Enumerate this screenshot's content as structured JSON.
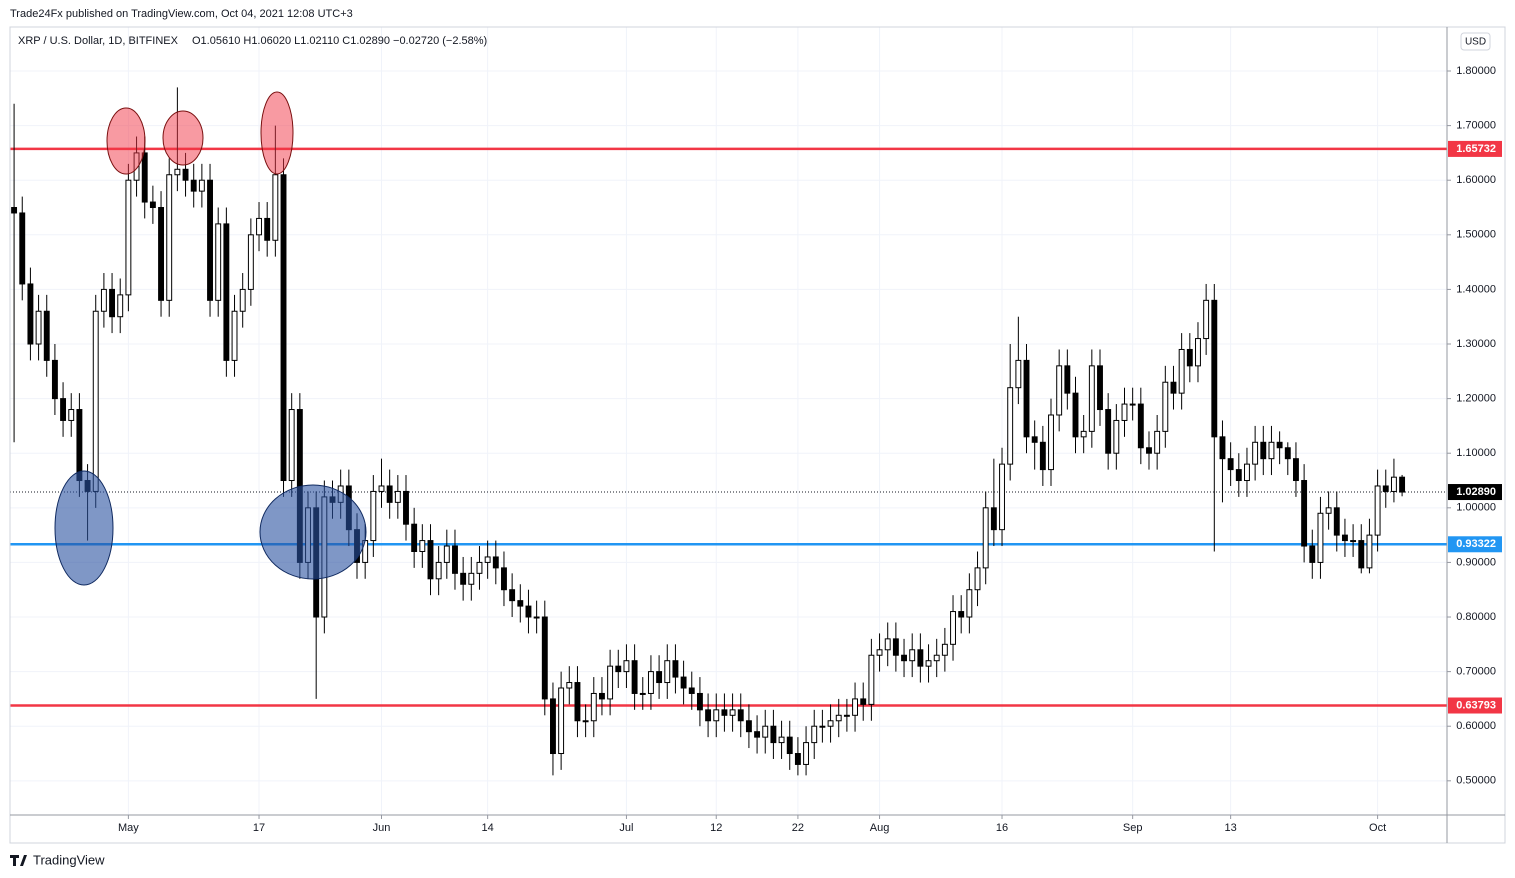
{
  "chart_data": {
    "type": "candlestick",
    "publisher": "Trade24Fx published on TradingView.com, Oct 04, 2021 12:08 UTC+3",
    "title": "XRP / U.S. Dollar, 1D, BITFINEX",
    "ohlc_header": "O1.05610 H1.06020 L1.02110 C1.02890 −0.02720 (−2.58%)",
    "currency": "USD",
    "brand": "TradingView",
    "up_color": "#ffffff",
    "down_color": "#000000",
    "outline_color": "#000000",
    "grid": true,
    "ylim": [
      0.4374,
      1.8806
    ],
    "yticks": [
      {
        "value": 0.5,
        "label": "0.50000"
      },
      {
        "value": 0.6,
        "label": "0.60000"
      },
      {
        "value": 0.7,
        "label": "0.70000"
      },
      {
        "value": 0.8,
        "label": "0.80000"
      },
      {
        "value": 0.9,
        "label": "0.90000"
      },
      {
        "value": 1.0,
        "label": "1.00000"
      },
      {
        "value": 1.1,
        "label": "1.10000"
      },
      {
        "value": 1.2,
        "label": "1.20000"
      },
      {
        "value": 1.3,
        "label": "1.30000"
      },
      {
        "value": 1.4,
        "label": "1.40000"
      },
      {
        "value": 1.5,
        "label": "1.50000"
      },
      {
        "value": 1.6,
        "label": "1.60000"
      },
      {
        "value": 1.7,
        "label": "1.70000"
      },
      {
        "value": 1.8,
        "label": "1.80000"
      }
    ],
    "xlim": [
      -0.5,
      175.5
    ],
    "xticks": [
      {
        "value": 14,
        "label": "May"
      },
      {
        "value": 30,
        "label": "17"
      },
      {
        "value": 45,
        "label": "Jun"
      },
      {
        "value": 58,
        "label": "14"
      },
      {
        "value": 75,
        "label": "Jul"
      },
      {
        "value": 86,
        "label": "12"
      },
      {
        "value": 96,
        "label": "22"
      },
      {
        "value": 106,
        "label": "Aug"
      },
      {
        "value": 121,
        "label": "16"
      },
      {
        "value": 137,
        "label": "Sep"
      },
      {
        "value": 149,
        "label": "13"
      },
      {
        "value": 167,
        "label": "Oct"
      }
    ],
    "levels": [
      {
        "value": 1.65732,
        "label": "1.65732",
        "color": "#f23645"
      },
      {
        "value": 0.93322,
        "label": "0.93322",
        "color": "#2196f3"
      },
      {
        "value": 0.63793,
        "label": "0.63793",
        "color": "#f23645"
      }
    ],
    "last_price_label": "1.02890",
    "open": [
      1.55,
      1.54,
      1.41,
      1.3,
      1.36,
      1.27,
      1.2,
      1.16,
      1.18,
      1.05,
      1.03,
      1.36,
      1.4,
      1.35,
      1.39,
      1.6,
      1.65,
      1.56,
      1.55,
      1.38,
      1.61,
      1.62,
      1.6,
      1.58,
      1.6,
      1.38,
      1.52,
      1.27,
      1.36,
      1.4,
      1.5,
      1.53,
      1.49,
      1.61,
      1.05,
      1.18,
      0.9,
      1.0,
      0.8,
      1.02,
      1.01,
      1.04,
      0.96,
      0.9,
      0.94,
      1.03,
      1.04,
      1.01,
      1.03,
      0.97,
      0.92,
      0.94,
      0.87,
      0.9,
      0.93,
      0.88,
      0.86,
      0.88,
      0.9,
      0.91,
      0.89,
      0.85,
      0.83,
      0.82,
      0.8,
      0.8,
      0.65,
      0.55,
      0.67,
      0.68,
      0.61,
      0.61,
      0.66,
      0.65,
      0.71,
      0.7,
      0.72,
      0.66,
      0.66,
      0.7,
      0.68,
      0.72,
      0.69,
      0.67,
      0.66,
      0.63,
      0.61,
      0.63,
      0.62,
      0.63,
      0.61,
      0.59,
      0.58,
      0.6,
      0.57,
      0.58,
      0.55,
      0.53,
      0.57,
      0.6,
      0.6,
      0.61,
      0.62,
      0.62,
      0.65,
      0.64,
      0.73,
      0.74,
      0.76,
      0.73,
      0.72,
      0.74,
      0.71,
      0.72,
      0.73,
      0.75,
      0.81,
      0.8,
      0.85,
      0.89,
      1.0,
      0.96,
      1.08,
      1.22,
      1.27,
      1.13,
      1.12,
      1.07,
      1.17,
      1.26,
      1.21,
      1.13,
      1.14,
      1.26,
      1.18,
      1.1,
      1.16,
      1.19,
      1.19,
      1.11,
      1.1,
      1.14,
      1.23,
      1.21,
      1.29,
      1.26,
      1.31,
      1.38,
      1.13,
      1.09,
      1.07,
      1.05,
      1.08,
      1.12,
      1.09,
      1.12,
      1.11,
      1.09,
      1.05,
      0.93,
      0.9,
      0.99,
      1.0,
      0.95,
      0.94,
      0.94,
      0.89,
      0.95,
      1.04,
      1.03,
      1.0561
    ],
    "high": [
      1.74,
      1.57,
      1.44,
      1.39,
      1.39,
      1.3,
      1.23,
      1.21,
      1.21,
      1.08,
      1.39,
      1.43,
      1.43,
      1.42,
      1.63,
      1.68,
      1.68,
      1.59,
      1.58,
      1.64,
      1.77,
      1.65,
      1.63,
      1.63,
      1.63,
      1.55,
      1.55,
      1.39,
      1.43,
      1.53,
      1.56,
      1.56,
      1.7,
      1.64,
      1.21,
      1.21,
      1.03,
      1.03,
      1.05,
      1.05,
      1.07,
      1.07,
      0.99,
      0.97,
      1.06,
      1.09,
      1.07,
      1.06,
      1.06,
      1.0,
      0.97,
      0.97,
      0.93,
      0.96,
      0.96,
      0.91,
      0.91,
      0.93,
      0.94,
      0.94,
      0.92,
      0.88,
      0.86,
      0.85,
      0.83,
      0.83,
      0.68,
      0.7,
      0.71,
      0.71,
      0.64,
      0.69,
      0.69,
      0.74,
      0.74,
      0.75,
      0.75,
      0.69,
      0.73,
      0.73,
      0.75,
      0.75,
      0.72,
      0.7,
      0.69,
      0.66,
      0.66,
      0.66,
      0.66,
      0.66,
      0.64,
      0.62,
      0.63,
      0.63,
      0.61,
      0.61,
      0.58,
      0.6,
      0.63,
      0.63,
      0.64,
      0.65,
      0.65,
      0.68,
      0.68,
      0.76,
      0.77,
      0.79,
      0.79,
      0.76,
      0.77,
      0.77,
      0.75,
      0.76,
      0.78,
      0.84,
      0.84,
      0.88,
      0.92,
      1.03,
      1.09,
      1.11,
      1.3,
      1.35,
      1.3,
      1.16,
      1.15,
      1.2,
      1.29,
      1.29,
      1.24,
      1.17,
      1.29,
      1.29,
      1.21,
      1.19,
      1.22,
      1.22,
      1.22,
      1.14,
      1.17,
      1.26,
      1.26,
      1.32,
      1.32,
      1.34,
      1.41,
      1.41,
      1.16,
      1.12,
      1.1,
      1.11,
      1.15,
      1.15,
      1.15,
      1.14,
      1.12,
      1.12,
      1.08,
      0.96,
      1.02,
      1.03,
      1.03,
      0.98,
      0.97,
      0.97,
      0.98,
      1.07,
      1.07,
      1.09,
      1.0602
    ],
    "low": [
      1.12,
      1.38,
      1.27,
      1.27,
      1.24,
      1.17,
      1.13,
      1.13,
      1.02,
      0.94,
      1.0,
      1.33,
      1.32,
      1.32,
      1.36,
      1.57,
      1.53,
      1.52,
      1.35,
      1.35,
      1.58,
      1.57,
      1.55,
      1.55,
      1.35,
      1.35,
      1.24,
      1.24,
      1.33,
      1.37,
      1.47,
      1.46,
      1.46,
      1.02,
      1.02,
      0.87,
      0.87,
      0.65,
      0.77,
      0.98,
      0.98,
      0.93,
      0.87,
      0.87,
      0.91,
      1.0,
      0.98,
      0.98,
      0.94,
      0.89,
      0.89,
      0.84,
      0.84,
      0.87,
      0.85,
      0.83,
      0.83,
      0.85,
      0.87,
      0.86,
      0.82,
      0.8,
      0.79,
      0.77,
      0.77,
      0.62,
      0.51,
      0.52,
      0.64,
      0.58,
      0.58,
      0.58,
      0.62,
      0.62,
      0.67,
      0.67,
      0.63,
      0.63,
      0.63,
      0.65,
      0.65,
      0.66,
      0.64,
      0.63,
      0.6,
      0.58,
      0.58,
      0.59,
      0.59,
      0.58,
      0.56,
      0.55,
      0.55,
      0.54,
      0.54,
      0.52,
      0.51,
      0.51,
      0.54,
      0.57,
      0.57,
      0.58,
      0.59,
      0.59,
      0.61,
      0.61,
      0.7,
      0.71,
      0.7,
      0.69,
      0.69,
      0.68,
      0.68,
      0.69,
      0.7,
      0.72,
      0.77,
      0.77,
      0.82,
      0.86,
      0.93,
      0.93,
      1.05,
      1.19,
      1.1,
      1.07,
      1.04,
      1.04,
      1.14,
      1.18,
      1.1,
      1.1,
      1.11,
      1.15,
      1.07,
      1.07,
      1.13,
      1.16,
      1.08,
      1.07,
      1.07,
      1.11,
      1.18,
      1.18,
      1.23,
      1.23,
      1.28,
      0.92,
      1.01,
      1.04,
      1.02,
      1.02,
      1.05,
      1.06,
      1.06,
      1.08,
      1.06,
      1.02,
      0.9,
      0.87,
      0.87,
      0.96,
      0.92,
      0.91,
      0.91,
      0.88,
      0.88,
      0.92,
      1.0,
      1.01,
      1.0211
    ],
    "close": [
      1.54,
      1.41,
      1.3,
      1.36,
      1.27,
      1.2,
      1.16,
      1.18,
      1.05,
      1.03,
      1.36,
      1.4,
      1.35,
      1.39,
      1.6,
      1.65,
      1.56,
      1.55,
      1.38,
      1.61,
      1.62,
      1.6,
      1.58,
      1.6,
      1.38,
      1.52,
      1.27,
      1.36,
      1.4,
      1.5,
      1.53,
      1.49,
      1.61,
      1.05,
      1.18,
      0.9,
      1.0,
      0.8,
      1.02,
      1.01,
      1.04,
      0.96,
      0.9,
      0.94,
      1.03,
      1.04,
      1.01,
      1.03,
      0.97,
      0.92,
      0.94,
      0.87,
      0.9,
      0.93,
      0.88,
      0.86,
      0.88,
      0.9,
      0.91,
      0.89,
      0.85,
      0.83,
      0.82,
      0.8,
      0.8,
      0.65,
      0.55,
      0.67,
      0.68,
      0.61,
      0.61,
      0.66,
      0.65,
      0.71,
      0.7,
      0.72,
      0.66,
      0.66,
      0.7,
      0.68,
      0.72,
      0.69,
      0.67,
      0.66,
      0.63,
      0.61,
      0.63,
      0.62,
      0.63,
      0.61,
      0.59,
      0.58,
      0.6,
      0.57,
      0.58,
      0.55,
      0.53,
      0.57,
      0.6,
      0.6,
      0.61,
      0.62,
      0.62,
      0.65,
      0.64,
      0.73,
      0.74,
      0.76,
      0.73,
      0.72,
      0.74,
      0.71,
      0.72,
      0.73,
      0.75,
      0.81,
      0.8,
      0.85,
      0.89,
      1.0,
      0.96,
      1.08,
      1.22,
      1.27,
      1.13,
      1.12,
      1.07,
      1.17,
      1.26,
      1.21,
      1.13,
      1.14,
      1.26,
      1.18,
      1.1,
      1.16,
      1.19,
      1.19,
      1.11,
      1.1,
      1.14,
      1.23,
      1.21,
      1.29,
      1.26,
      1.31,
      1.38,
      1.13,
      1.09,
      1.07,
      1.05,
      1.08,
      1.12,
      1.09,
      1.12,
      1.11,
      1.09,
      1.05,
      0.93,
      0.9,
      0.99,
      1.0,
      0.95,
      0.94,
      0.94,
      0.89,
      0.95,
      1.04,
      1.03,
      1.0561,
      1.0289
    ]
  }
}
